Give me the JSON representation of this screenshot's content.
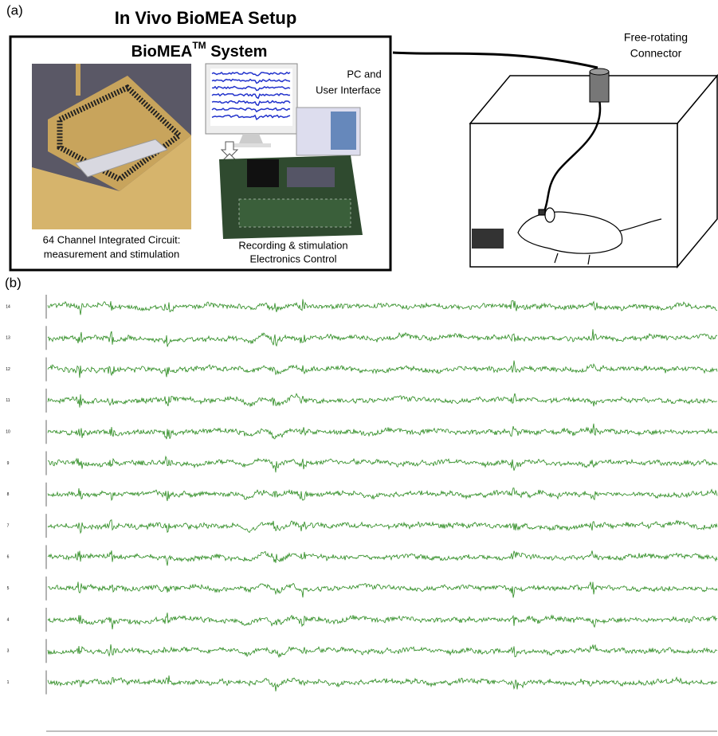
{
  "panel_a": {
    "label": "(a)",
    "title": "In Vivo BioMEA Setup",
    "system_title": {
      "name": "BioMEA",
      "sup": "TM",
      "rest": " System"
    },
    "chip_caption": [
      "64 Channel Integrated Circuit:",
      "measurement and stimulation"
    ],
    "pc_caption": [
      "PC  and",
      "User Interface"
    ],
    "board_caption": [
      "Recording & stimulation",
      "Electronics Control"
    ],
    "connector_caption": [
      "Free-rotating",
      "Connector"
    ]
  },
  "panel_b": {
    "label": "(b)",
    "channels": [
      "14",
      "13",
      "12",
      "11",
      "10",
      "9",
      "8",
      "7",
      "6",
      "5",
      "4",
      "3",
      "1"
    ]
  }
}
